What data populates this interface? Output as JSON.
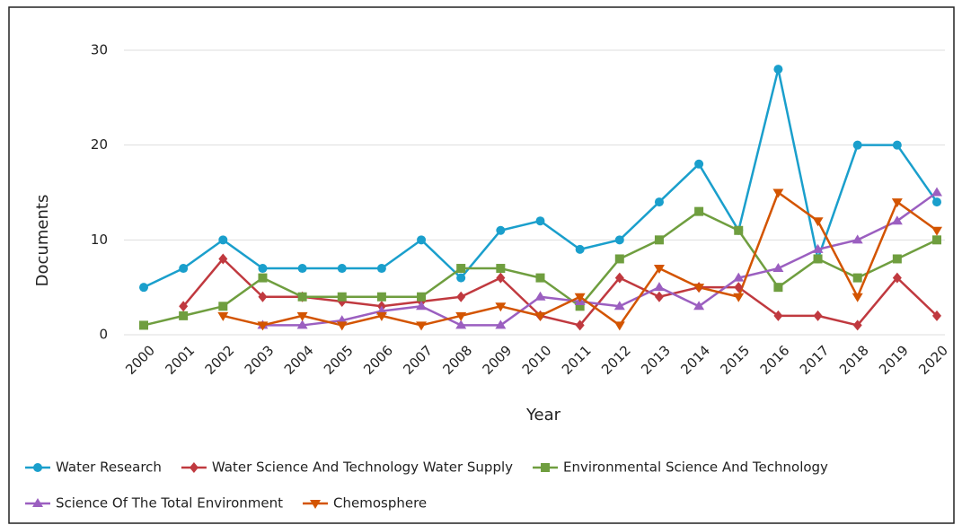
{
  "chart_data": {
    "type": "line",
    "x_label": "Year",
    "y_label": "Documents",
    "categories": [
      "2000",
      "2001",
      "2002",
      "2003",
      "2004",
      "2005",
      "2006",
      "2007",
      "2008",
      "2009",
      "2010",
      "2011",
      "2012",
      "2013",
      "2014",
      "2015",
      "2016",
      "2017",
      "2018",
      "2019",
      "2020"
    ],
    "ylim": [
      0,
      30
    ],
    "yticks": [
      0,
      10,
      20,
      30
    ],
    "grid": true,
    "legend": "bottom",
    "series": [
      {
        "name": "Water Research",
        "color": "#1a9fcc",
        "marker": "circle",
        "values": [
          5,
          7,
          10,
          7,
          7,
          7,
          7,
          10,
          6,
          11,
          12,
          9,
          10,
          14,
          18,
          11,
          28,
          8,
          20,
          20,
          14
        ]
      },
      {
        "name": "Water Science And Technology Water Supply",
        "color": "#c0393f",
        "marker": "diamond",
        "values": [
          null,
          3,
          8,
          4,
          4,
          3.5,
          3,
          3.5,
          4,
          6,
          2,
          1,
          6,
          4,
          5,
          5,
          2,
          2,
          1,
          6,
          2
        ]
      },
      {
        "name": "Environmental Science And Technology",
        "color": "#6f9e3f",
        "marker": "square",
        "values": [
          1,
          2,
          3,
          6,
          4,
          4,
          4,
          4,
          7,
          7,
          6,
          3,
          8,
          10,
          13,
          11,
          5,
          8,
          6,
          8,
          10
        ]
      },
      {
        "name": "Science Of The Total Environment",
        "color": "#9b5fc0",
        "marker": "triangle-up",
        "values": [
          null,
          null,
          null,
          1,
          1,
          1.5,
          2.5,
          3,
          1,
          1,
          4,
          3.5,
          3,
          5,
          3,
          6,
          7,
          9,
          10,
          12,
          15
        ]
      },
      {
        "name": "Chemosphere",
        "color": "#d35400",
        "marker": "triangle-down",
        "values": [
          null,
          null,
          2,
          1,
          2,
          1,
          2,
          1,
          2,
          3,
          2,
          4,
          1,
          7,
          5,
          4,
          15,
          12,
          4,
          14,
          11
        ]
      }
    ]
  }
}
